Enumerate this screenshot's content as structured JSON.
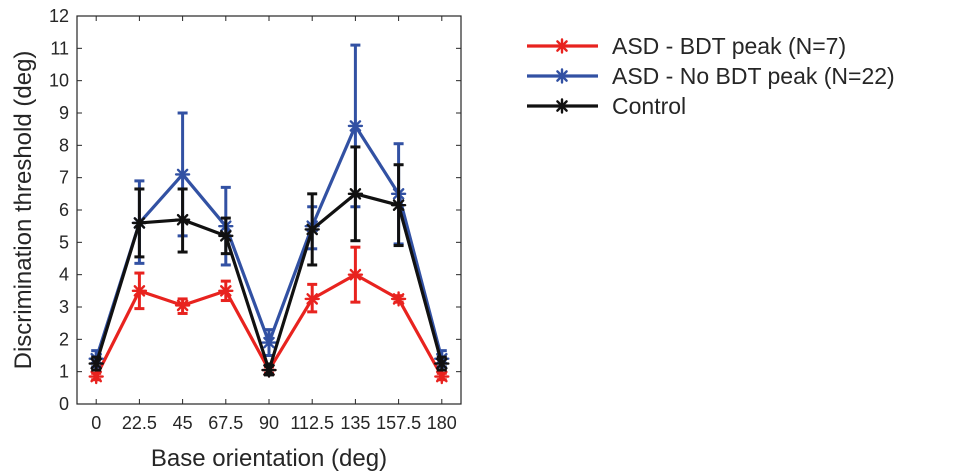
{
  "chart_data": {
    "type": "line",
    "xlabel": "Base orientation (deg)",
    "ylabel": "Discrimination threshold (deg)",
    "x": [
      0,
      22.5,
      45,
      67.5,
      90,
      112.5,
      135,
      157.5,
      180
    ],
    "x_tick_labels": [
      "0",
      "22.5",
      "45",
      "67.5",
      "90",
      "112.5",
      "135",
      "157.5",
      "180"
    ],
    "xlim": [
      -10,
      190
    ],
    "ylim": [
      0,
      12
    ],
    "y_ticks": [
      0,
      1,
      2,
      3,
      4,
      5,
      6,
      7,
      8,
      9,
      10,
      11,
      12
    ],
    "legend_position": "outside-right-top",
    "series": [
      {
        "name": "ASD - BDT peak (N=7)",
        "color": "#e8231f",
        "marker": "asterisk",
        "values": [
          0.85,
          3.5,
          3.05,
          3.5,
          1.05,
          3.25,
          4.0,
          3.25,
          0.85
        ],
        "err_low": [
          0.1,
          0.55,
          0.25,
          0.3,
          0.1,
          0.4,
          0.85,
          0.1,
          0.1
        ],
        "err_high": [
          0.1,
          0.55,
          0.2,
          0.3,
          0.1,
          0.45,
          0.85,
          0.1,
          0.1
        ]
      },
      {
        "name": "ASD - No BDT peak (N=22)",
        "color": "#3251a3",
        "marker": "asterisk",
        "values": [
          1.4,
          5.6,
          7.1,
          5.5,
          1.9,
          5.5,
          8.6,
          6.5,
          1.4
        ],
        "err_low": [
          0.25,
          1.25,
          1.9,
          1.2,
          0.4,
          0.7,
          2.5,
          1.55,
          0.25
        ],
        "err_high": [
          0.25,
          1.3,
          1.9,
          1.2,
          0.4,
          0.6,
          2.5,
          1.55,
          0.25
        ]
      },
      {
        "name": "Control",
        "color": "#111111",
        "marker": "asterisk",
        "values": [
          1.25,
          5.6,
          5.7,
          5.2,
          1.05,
          5.4,
          6.5,
          6.15,
          1.25
        ],
        "err_low": [
          0.2,
          1.05,
          1.0,
          0.55,
          0.15,
          1.1,
          1.45,
          1.25,
          0.2
        ],
        "err_high": [
          0.2,
          1.05,
          0.95,
          0.55,
          0.15,
          1.1,
          1.45,
          1.25,
          0.2
        ]
      }
    ]
  }
}
